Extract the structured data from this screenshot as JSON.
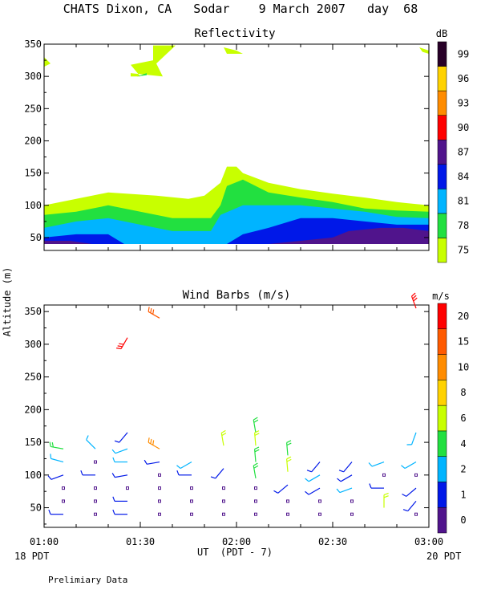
{
  "header": {
    "title": "CHATS Dixon, CA   Sodar    9 March 2007   day  68"
  },
  "colors": {
    "reflectivity": [
      "#c8ff00",
      "#22e040",
      "#00b4ff",
      "#0018e8",
      "#50148c",
      "#ff0000",
      "#ff8c00",
      "#ffd200",
      "#280028"
    ],
    "wind": [
      "#50148c",
      "#0018e8",
      "#00b4ff",
      "#22e040",
      "#c8ff00",
      "#ffd200",
      "#ff8c00",
      "#ff5a00",
      "#ff0000"
    ]
  },
  "footer": {
    "left_date": "18 PDT",
    "right_date": "20 PDT",
    "note": "Prelimiary Data"
  },
  "chart_data": [
    {
      "type": "heatmap",
      "title": "Reflectivity",
      "ylabel": "Altitude (m)",
      "xlabel": "UT  (PDT - 7)",
      "xlim": [
        "01:00",
        "03:00"
      ],
      "ylim": [
        30,
        350
      ],
      "yticks": [
        50,
        100,
        150,
        200,
        250,
        300,
        350
      ],
      "xticks": [
        "01:00",
        "01:30",
        "02:00",
        "02:30",
        "03:00"
      ],
      "colorbar": {
        "unit": "dB",
        "ticks": [
          "75",
          "78",
          "81",
          "84",
          "87",
          "90",
          "93",
          "96",
          "99"
        ]
      },
      "contours": [
        {
          "level": 75,
          "points": [
            [
              0,
              40
            ],
            [
              0,
              100
            ],
            [
              10,
              110
            ],
            [
              20,
              120
            ],
            [
              35,
              115
            ],
            [
              45,
              110
            ],
            [
              50,
              115
            ],
            [
              55,
              135
            ],
            [
              57,
              160
            ],
            [
              60,
              160
            ],
            [
              62,
              150
            ],
            [
              70,
              135
            ],
            [
              80,
              125
            ],
            [
              90,
              118
            ],
            [
              100,
              112
            ],
            [
              110,
              105
            ],
            [
              120,
              100
            ],
            [
              120,
              40
            ]
          ]
        },
        {
          "level": 78,
          "points": [
            [
              0,
              40
            ],
            [
              0,
              85
            ],
            [
              10,
              90
            ],
            [
              20,
              100
            ],
            [
              30,
              90
            ],
            [
              40,
              80
            ],
            [
              52,
              80
            ],
            [
              55,
              100
            ],
            [
              57,
              130
            ],
            [
              62,
              140
            ],
            [
              70,
              120
            ],
            [
              80,
              112
            ],
            [
              90,
              105
            ],
            [
              100,
              95
            ],
            [
              110,
              92
            ],
            [
              120,
              90
            ],
            [
              120,
              40
            ]
          ]
        },
        {
          "level": 81,
          "points": [
            [
              0,
              40
            ],
            [
              0,
              65
            ],
            [
              10,
              75
            ],
            [
              20,
              80
            ],
            [
              30,
              70
            ],
            [
              40,
              60
            ],
            [
              52,
              60
            ],
            [
              55,
              85
            ],
            [
              62,
              100
            ],
            [
              70,
              100
            ],
            [
              80,
              100
            ],
            [
              90,
              95
            ],
            [
              100,
              90
            ],
            [
              110,
              82
            ],
            [
              120,
              80
            ],
            [
              120,
              40
            ]
          ]
        },
        {
          "level": 84,
          "points": [
            [
              0,
              40
            ],
            [
              0,
              50
            ],
            [
              10,
              55
            ],
            [
              20,
              55
            ],
            [
              25,
              40
            ],
            [
              57,
              40
            ],
            [
              62,
              55
            ],
            [
              70,
              65
            ],
            [
              80,
              80
            ],
            [
              90,
              80
            ],
            [
              100,
              75
            ],
            [
              110,
              70
            ],
            [
              120,
              70
            ],
            [
              120,
              40
            ]
          ]
        },
        {
          "level": 87,
          "points": [
            [
              0,
              40
            ],
            [
              0,
              45
            ],
            [
              8,
              45
            ],
            [
              15,
              40
            ],
            [
              70,
              40
            ],
            [
              80,
              45
            ],
            [
              90,
              50
            ],
            [
              95,
              60
            ],
            [
              105,
              65
            ],
            [
              112,
              65
            ],
            [
              120,
              60
            ],
            [
              120,
              40
            ]
          ]
        },
        {
          "level": 75,
          "points": [
            [
              27,
              300
            ],
            [
              30,
              300
            ],
            [
              27,
              318
            ],
            [
              34,
              325
            ],
            [
              34,
              348
            ],
            [
              41,
              348
            ],
            [
              35,
              320
            ],
            [
              37,
              300
            ],
            [
              27,
              305
            ]
          ]
        },
        {
          "level": 78,
          "points": [
            [
              29,
              300
            ],
            [
              32,
              305
            ],
            [
              32,
              302
            ]
          ]
        },
        {
          "level": 75,
          "points": [
            [
              56,
              345
            ],
            [
              60,
              340
            ],
            [
              62,
              335
            ],
            [
              57,
              335
            ]
          ]
        },
        {
          "level": 75,
          "points": [
            [
              117,
              345
            ],
            [
              120,
              340
            ],
            [
              120,
              335
            ],
            [
              118,
              338
            ]
          ]
        },
        {
          "level": 75,
          "points": [
            [
              0,
              330
            ],
            [
              2,
              320
            ],
            [
              0,
              315
            ]
          ]
        }
      ]
    },
    {
      "type": "scatter",
      "title": "Wind Barbs (m/s)",
      "ylabel": "Altitude (m)",
      "xlabel": "UT  (PDT - 7)",
      "xlim": [
        "01:00",
        "03:00"
      ],
      "ylim": [
        20,
        360
      ],
      "yticks": [
        50,
        100,
        150,
        200,
        250,
        300,
        350
      ],
      "xticks": [
        "01:00",
        "01:30",
        "02:00",
        "02:30",
        "03:00"
      ],
      "colorbar": {
        "unit": "m/s",
        "ticks": [
          "0",
          "1",
          "2",
          "4",
          "6",
          "8",
          "10",
          "15",
          "20"
        ]
      },
      "barbs": [
        {
          "t": 6,
          "z": 140,
          "c": 3,
          "dir": 280
        },
        {
          "t": 6,
          "z": 120,
          "c": 2,
          "dir": 285
        },
        {
          "t": 6,
          "z": 100,
          "c": 1,
          "dir": 250
        },
        {
          "t": 6,
          "z": 80,
          "c": 0,
          "dir": null
        },
        {
          "t": 6,
          "z": 60,
          "c": 0,
          "dir": null
        },
        {
          "t": 6,
          "z": 40,
          "c": 1,
          "dir": 270
        },
        {
          "t": 16,
          "z": 140,
          "c": 2,
          "dir": 315
        },
        {
          "t": 16,
          "z": 120,
          "c": 0,
          "dir": null
        },
        {
          "t": 16,
          "z": 100,
          "c": 1,
          "dir": 270
        },
        {
          "t": 16,
          "z": 80,
          "c": 0,
          "dir": null
        },
        {
          "t": 16,
          "z": 60,
          "c": 0,
          "dir": null
        },
        {
          "t": 16,
          "z": 40,
          "c": 0,
          "dir": null
        },
        {
          "t": 26,
          "z": 310,
          "c": 8,
          "dir": 210
        },
        {
          "t": 26,
          "z": 165,
          "c": 1,
          "dir": 220
        },
        {
          "t": 26,
          "z": 140,
          "c": 2,
          "dir": 250
        },
        {
          "t": 26,
          "z": 120,
          "c": 2,
          "dir": 270
        },
        {
          "t": 26,
          "z": 100,
          "c": 1,
          "dir": 260
        },
        {
          "t": 26,
          "z": 80,
          "c": 0,
          "dir": null
        },
        {
          "t": 26,
          "z": 60,
          "c": 1,
          "dir": 270
        },
        {
          "t": 26,
          "z": 40,
          "c": 1,
          "dir": 270
        },
        {
          "t": 36,
          "z": 340,
          "c": 7,
          "dir": 300
        },
        {
          "t": 36,
          "z": 140,
          "c": 6,
          "dir": 300
        },
        {
          "t": 36,
          "z": 120,
          "c": 1,
          "dir": 260
        },
        {
          "t": 36,
          "z": 100,
          "c": 0,
          "dir": null
        },
        {
          "t": 36,
          "z": 80,
          "c": 0,
          "dir": null
        },
        {
          "t": 36,
          "z": 60,
          "c": 0,
          "dir": null
        },
        {
          "t": 36,
          "z": 40,
          "c": 0,
          "dir": null
        },
        {
          "t": 46,
          "z": 120,
          "c": 2,
          "dir": 240
        },
        {
          "t": 46,
          "z": 100,
          "c": 1,
          "dir": 270
        },
        {
          "t": 46,
          "z": 80,
          "c": 0,
          "dir": null
        },
        {
          "t": 46,
          "z": 60,
          "c": 0,
          "dir": null
        },
        {
          "t": 46,
          "z": 40,
          "c": 0,
          "dir": null
        },
        {
          "t": 56,
          "z": 145,
          "c": 4,
          "dir": 350
        },
        {
          "t": 56,
          "z": 110,
          "c": 1,
          "dir": 220
        },
        {
          "t": 56,
          "z": 80,
          "c": 0,
          "dir": null
        },
        {
          "t": 56,
          "z": 60,
          "c": 0,
          "dir": null
        },
        {
          "t": 56,
          "z": 40,
          "c": 0,
          "dir": null
        },
        {
          "t": 66,
          "z": 165,
          "c": 3,
          "dir": 350
        },
        {
          "t": 66,
          "z": 145,
          "c": 4,
          "dir": 355
        },
        {
          "t": 66,
          "z": 120,
          "c": 3,
          "dir": 355
        },
        {
          "t": 66,
          "z": 95,
          "c": 3,
          "dir": 350
        },
        {
          "t": 66,
          "z": 80,
          "c": 0,
          "dir": null
        },
        {
          "t": 66,
          "z": 60,
          "c": 0,
          "dir": null
        },
        {
          "t": 66,
          "z": 40,
          "c": 0,
          "dir": null
        },
        {
          "t": 76,
          "z": 130,
          "c": 3,
          "dir": 355
        },
        {
          "t": 76,
          "z": 105,
          "c": 4,
          "dir": 355
        },
        {
          "t": 76,
          "z": 85,
          "c": 1,
          "dir": 230
        },
        {
          "t": 76,
          "z": 60,
          "c": 0,
          "dir": null
        },
        {
          "t": 76,
          "z": 40,
          "c": 0,
          "dir": null
        },
        {
          "t": 86,
          "z": 120,
          "c": 1,
          "dir": 220
        },
        {
          "t": 86,
          "z": 100,
          "c": 2,
          "dir": 240
        },
        {
          "t": 86,
          "z": 80,
          "c": 1,
          "dir": 240
        },
        {
          "t": 86,
          "z": 60,
          "c": 0,
          "dir": null
        },
        {
          "t": 86,
          "z": 40,
          "c": 0,
          "dir": null
        },
        {
          "t": 96,
          "z": 120,
          "c": 1,
          "dir": 220
        },
        {
          "t": 96,
          "z": 100,
          "c": 1,
          "dir": 240
        },
        {
          "t": 96,
          "z": 80,
          "c": 2,
          "dir": 250
        },
        {
          "t": 96,
          "z": 60,
          "c": 0,
          "dir": null
        },
        {
          "t": 96,
          "z": 40,
          "c": 0,
          "dir": null
        },
        {
          "t": 106,
          "z": 120,
          "c": 2,
          "dir": 250
        },
        {
          "t": 106,
          "z": 100,
          "c": 0,
          "dir": null
        },
        {
          "t": 106,
          "z": 80,
          "c": 1,
          "dir": 270
        },
        {
          "t": 106,
          "z": 50,
          "c": 4,
          "dir": 360
        },
        {
          "t": 116,
          "z": 355,
          "c": 8,
          "dir": 340
        },
        {
          "t": 116,
          "z": 165,
          "c": 2,
          "dir": 200
        },
        {
          "t": 116,
          "z": 120,
          "c": 2,
          "dir": 240
        },
        {
          "t": 116,
          "z": 100,
          "c": 0,
          "dir": null
        },
        {
          "t": 116,
          "z": 80,
          "c": 1,
          "dir": 230
        },
        {
          "t": 116,
          "z": 60,
          "c": 1,
          "dir": 220
        },
        {
          "t": 116,
          "z": 40,
          "c": 0,
          "dir": null
        }
      ]
    }
  ]
}
